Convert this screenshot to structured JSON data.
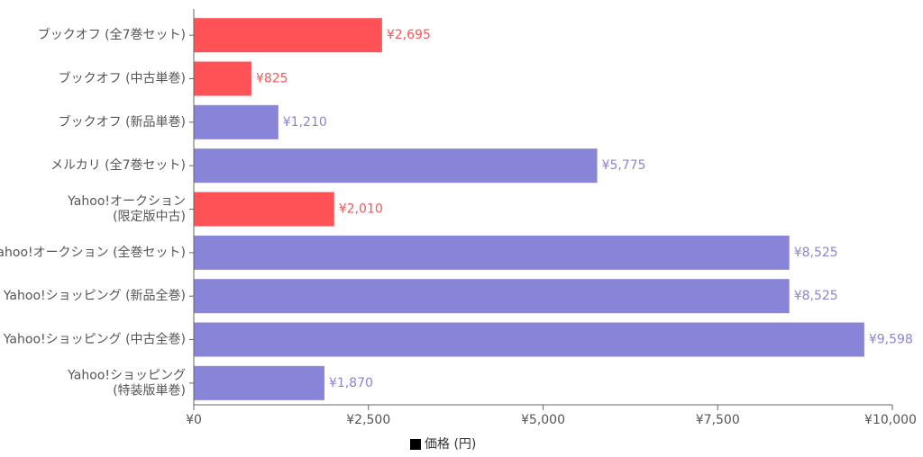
{
  "chart_data": {
    "type": "bar",
    "orientation": "horizontal",
    "categories": [
      [
        "ブックオフ (全7巻セット)"
      ],
      [
        "ブックオフ (中古単巻)"
      ],
      [
        "ブックオフ (新品単巻)"
      ],
      [
        "メルカリ (全7巻セット)"
      ],
      [
        "Yahoo!オークション",
        "(限定版中古)"
      ],
      [
        "Yahoo!オークション (全巻セット)"
      ],
      [
        "Yahoo!ショッピング (新品全巻)"
      ],
      [
        "Yahoo!ショッピング (中古全巻)"
      ],
      [
        "Yahoo!ショッピング",
        "(特装版単巻)"
      ]
    ],
    "values": [
      2695,
      825,
      1210,
      5775,
      2010,
      8525,
      8525,
      9598,
      1870
    ],
    "value_labels": [
      "¥2,695",
      "¥825",
      "¥1,210",
      "¥5,775",
      "¥2,010",
      "¥8,525",
      "¥8,525",
      "¥9,598",
      "¥1,870"
    ],
    "bar_colors": [
      "#ff5257",
      "#ff5257",
      "#8884d8",
      "#8884d8",
      "#ff5257",
      "#8884d8",
      "#8884d8",
      "#8884d8",
      "#8884d8"
    ],
    "xlim": [
      0,
      10000
    ],
    "xticks": [
      0,
      2500,
      5000,
      7500,
      10000
    ],
    "xtick_labels": [
      "¥0",
      "¥2,500",
      "¥5,000",
      "¥7,500",
      "¥10,000"
    ],
    "grid": false,
    "legend": {
      "position": "bottom-center",
      "label": "価格 (円)",
      "swatch_color": "#000000"
    }
  }
}
